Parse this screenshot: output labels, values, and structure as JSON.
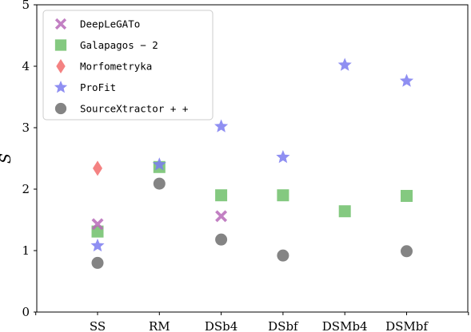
{
  "chart_data": {
    "type": "scatter",
    "xlabel": "",
    "ylabel": "S",
    "categories": [
      "SS",
      "RM",
      "DSb4",
      "DSbf",
      "DSMb4",
      "DSMbf"
    ],
    "ylim": [
      0,
      5
    ],
    "yticks": [
      "0",
      "1",
      "2",
      "3",
      "4",
      "5"
    ],
    "grid": false,
    "legend_position": "top-left",
    "series": [
      {
        "name": "DeepLeGATo",
        "marker": "x",
        "color": "#b76ab8",
        "values": [
          1.43,
          null,
          1.56,
          null,
          null,
          null
        ]
      },
      {
        "name": "Galapagos − 2",
        "marker": "square",
        "color": "#6fbf6a",
        "values": [
          1.31,
          2.36,
          1.9,
          1.9,
          1.64,
          1.89
        ]
      },
      {
        "name": "Morfometryka",
        "marker": "diamond",
        "color": "#f26c6c",
        "values": [
          2.34,
          null,
          null,
          null,
          null,
          null
        ]
      },
      {
        "name": "ProFit",
        "marker": "star",
        "color": "#7b7bf0",
        "values": [
          1.08,
          2.4,
          3.02,
          2.52,
          4.02,
          3.76
        ]
      },
      {
        "name": "SourceXtractor + +",
        "marker": "circle",
        "color": "#6e6e6e",
        "values": [
          0.8,
          2.09,
          1.18,
          0.92,
          null,
          0.99
        ]
      }
    ]
  }
}
